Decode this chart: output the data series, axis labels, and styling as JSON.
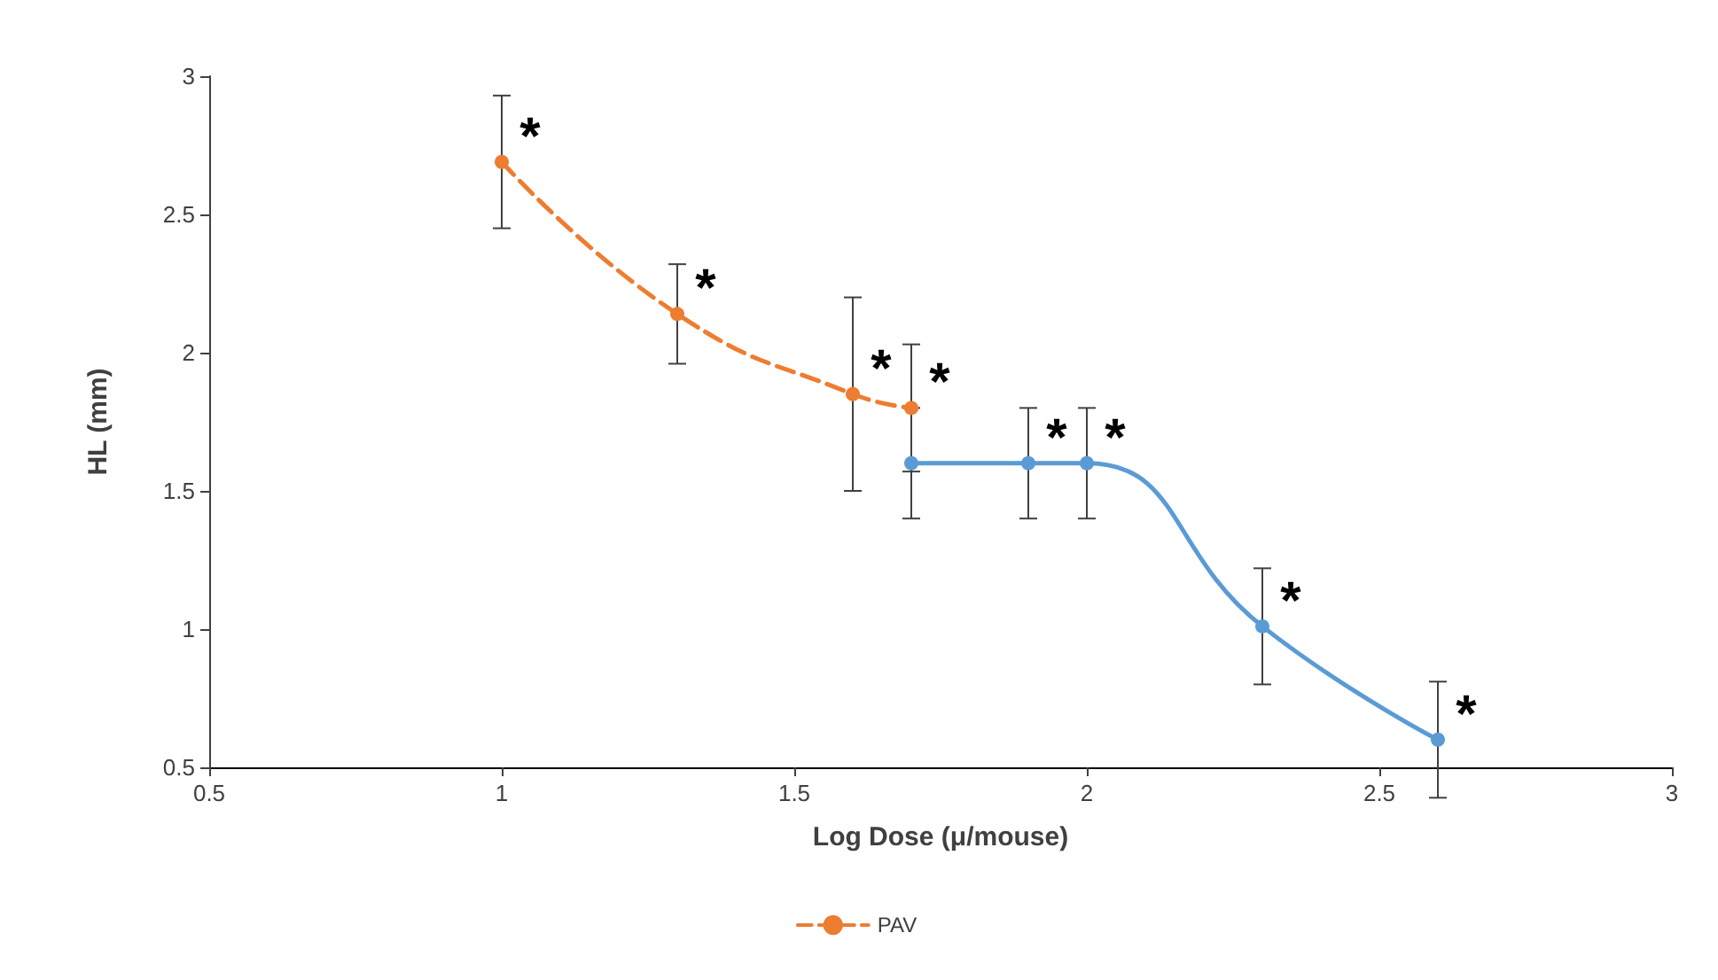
{
  "chart_data": {
    "type": "line",
    "xlabel": "Log Dose (μ/mouse)",
    "ylabel": "HL (mm)",
    "xlim": [
      0.5,
      3
    ],
    "xticks": [
      0.5,
      1,
      1.5,
      2,
      2.5,
      3
    ],
    "ylim": [
      0.5,
      3
    ],
    "yticks": [
      0.5,
      1,
      1.5,
      2,
      2.5,
      3
    ],
    "grid": false,
    "legend": "bottom",
    "marker": "circle",
    "series": [
      {
        "color": "#5b9bd5",
        "line_style": "solid",
        "x": [
          1.7,
          1.9,
          2.0,
          2.3,
          2.6
        ],
        "values": [
          1.6,
          1.6,
          1.6,
          1.01,
          0.6
        ],
        "errors": [
          0.2,
          0.2,
          0.2,
          0.21,
          0.21
        ]
      },
      {
        "name": "PAV",
        "color": "#ed7d31",
        "line_style": "dashed",
        "x": [
          1,
          1.3,
          1.6,
          1.7
        ],
        "values": [
          2.69,
          2.14,
          1.85,
          1.8
        ],
        "errors": [
          0.24,
          0.18,
          0.35,
          0.23
        ]
      }
    ],
    "annotations": [
      {
        "text": "*",
        "x": 1,
        "y": 2.69
      },
      {
        "text": "*",
        "x": 1.3,
        "y": 2.14
      },
      {
        "text": "*",
        "x": 1.6,
        "y": 1.85
      },
      {
        "text": "*",
        "x": 1.7,
        "y": 1.8
      },
      {
        "text": "*",
        "x": 1.9,
        "y": 1.6
      },
      {
        "text": "*",
        "x": 2.0,
        "y": 1.6
      },
      {
        "text": "*",
        "x": 2.3,
        "y": 1.01
      },
      {
        "text": "*",
        "x": 2.6,
        "y": 0.6
      }
    ]
  }
}
